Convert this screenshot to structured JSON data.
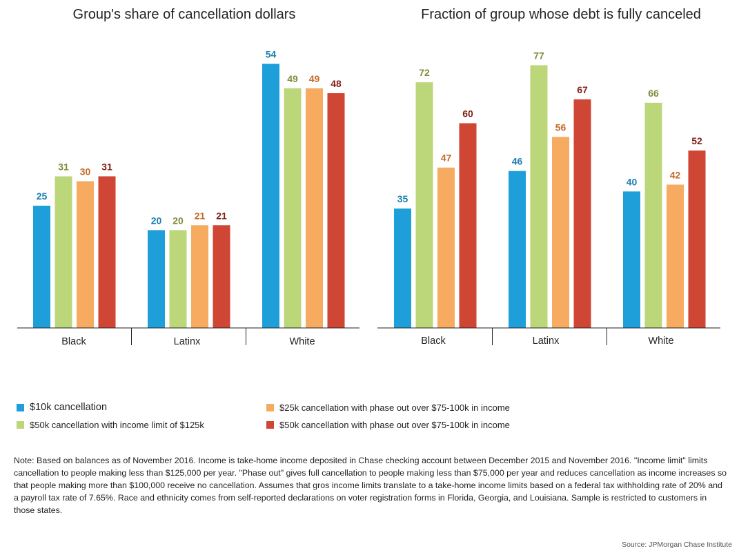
{
  "colors": {
    "s1": "#1e9fd9",
    "s2": "#bcd77a",
    "s3": "#f6ab60",
    "s4": "#cf4634",
    "s1_label": "#1c7eb0",
    "s2_label": "#7e8c3a",
    "s3_label": "#c46a2a",
    "s4_label": "#7f1f17"
  },
  "legend": [
    {
      "label": "$10k cancellation"
    },
    {
      "label": "$50k cancellation with income limit of $125k"
    },
    {
      "label": "$25k cancellation with phase out over $75-100k in income"
    },
    {
      "label": "$50k cancellation with phase out over $75-100k in income"
    }
  ],
  "chart_data": [
    {
      "type": "bar",
      "title": "Group's share of cancellation dollars",
      "categories": [
        "Black",
        "Latinx",
        "White"
      ],
      "ylim": [
        0,
        60
      ],
      "series": [
        {
          "name": "$10k cancellation",
          "values": [
            25,
            20,
            54
          ]
        },
        {
          "name": "$50k cancellation with income limit of $125k",
          "values": [
            31,
            20,
            49
          ]
        },
        {
          "name": "$25k cancellation with phase out over $75-100k in income",
          "values": [
            30,
            21,
            49
          ]
        },
        {
          "name": "$50k cancellation with phase out over $75-100k in income",
          "values": [
            31,
            21,
            48
          ]
        }
      ]
    },
    {
      "type": "bar",
      "title": "Fraction of group whose debt is fully canceled",
      "categories": [
        "Black",
        "Latinx",
        "White"
      ],
      "ylim": [
        0,
        86
      ],
      "series": [
        {
          "name": "$10k cancellation",
          "values": [
            35,
            46,
            40
          ]
        },
        {
          "name": "$50k cancellation with income limit of $125k",
          "values": [
            72,
            77,
            66
          ]
        },
        {
          "name": "$25k cancellation with phase out over $75-100k in income",
          "values": [
            47,
            56,
            42
          ]
        },
        {
          "name": "$50k cancellation with phase out over $75-100k in income",
          "values": [
            60,
            67,
            52
          ]
        }
      ]
    }
  ],
  "note": "Note: Based on balances as of November 2016. Income is take-home income deposited in Chase checking account between December 2015 and November 2016. \"Income limit\" limits cancellation to people making less than $125,000 per year. \"Phase out\" gives full cancellation to people making less than $75,000 per year and reduces cancellation as income increases so that people making more than $100,000 receive no cancellation. Assumes that gros income limits translate to a take-home income limits based on a federal tax withholding rate of 20% and a payroll tax rate of 7.65%. Race and ethnicity comes from self-reported declarations on voter registration forms in Florida, Georgia, and Louisiana. Sample is restricted to customers in those states.",
  "source": "Source: JPMorgan Chase Institute"
}
